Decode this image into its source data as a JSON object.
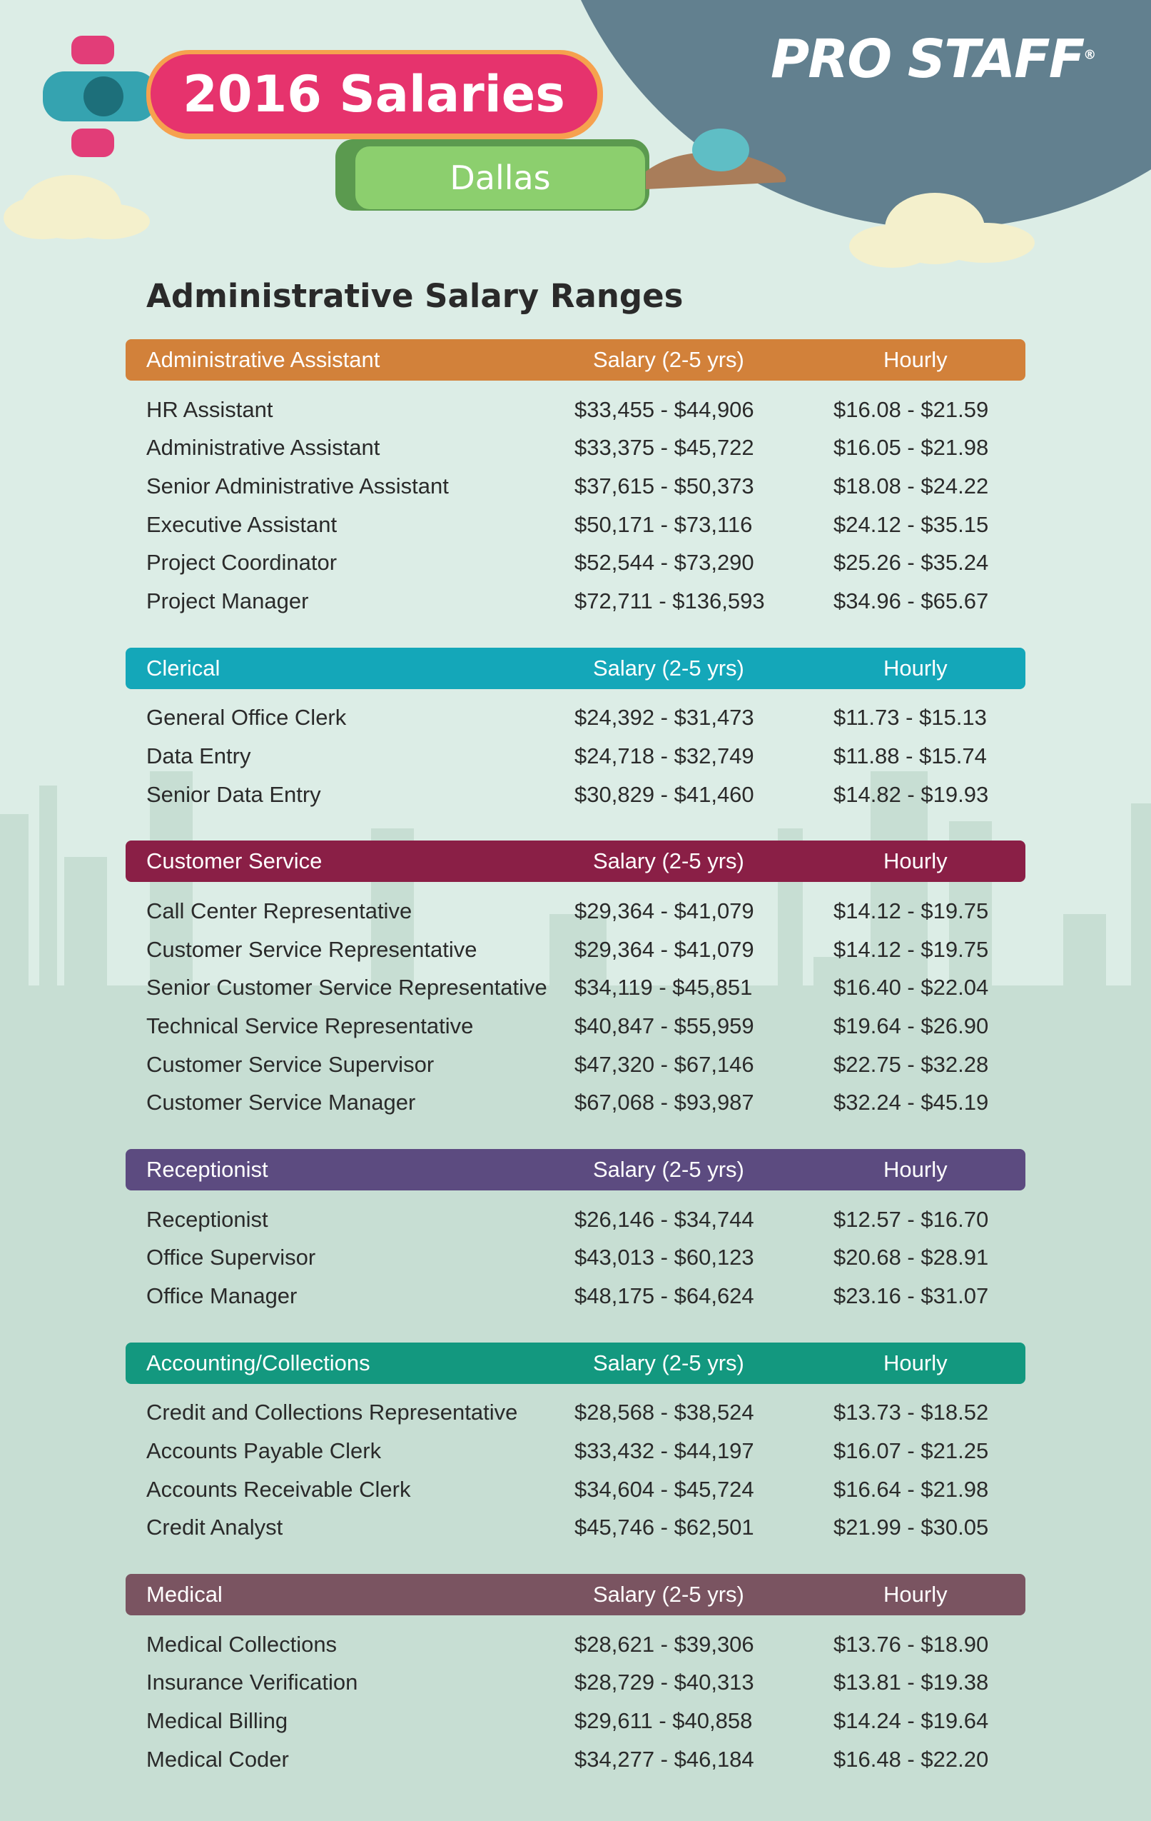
{
  "header": {
    "title": "2016 Salaries",
    "subtitle": "Dallas",
    "logo": "PRO STAFF",
    "logo_mark": "®"
  },
  "heading": "Administrative Salary Ranges",
  "sections": [
    {
      "color": "#d2813a",
      "columns": [
        "Administrative Assistant",
        "Salary (2-5 yrs)",
        "Hourly"
      ],
      "rows": [
        [
          "HR Assistant",
          "$33,455 - $44,906",
          "$16.08 - $21.59"
        ],
        [
          "Administrative Assistant",
          "$33,375 - $45,722",
          "$16.05 - $21.98"
        ],
        [
          "Senior Administrative Assistant",
          "$37,615 - $50,373",
          "$18.08 - $24.22"
        ],
        [
          "Executive Assistant",
          "$50,171 - $73,116",
          "$24.12 - $35.15"
        ],
        [
          "Project Coordinator",
          "$52,544 - $73,290",
          "$25.26 - $35.24"
        ],
        [
          "Project Manager",
          "$72,711 - $136,593",
          "$34.96 - $65.67"
        ]
      ]
    },
    {
      "color": "#14a7b9",
      "columns": [
        "Clerical",
        "Salary (2-5 yrs)",
        "Hourly"
      ],
      "rows": [
        [
          "General Office Clerk",
          "$24,392 - $31,473",
          "$11.73 - $15.13"
        ],
        [
          "Data Entry",
          "$24,718 - $32,749",
          "$11.88 - $15.74"
        ],
        [
          "Senior Data Entry",
          "$30,829 - $41,460",
          "$14.82 - $19.93"
        ]
      ]
    },
    {
      "color": "#8a1f46",
      "columns": [
        "Customer Service",
        "Salary (2-5 yrs)",
        "Hourly"
      ],
      "rows": [
        [
          "Call Center Representative",
          "$29,364 - $41,079",
          "$14.12 - $19.75"
        ],
        [
          "Customer Service Representative",
          "$29,364 - $41,079",
          "$14.12 - $19.75"
        ],
        [
          "Senior Customer Service Representative",
          "$34,119 - $45,851",
          "$16.40 - $22.04"
        ],
        [
          "Technical Service Representative",
          "$40,847 - $55,959",
          "$19.64 - $26.90"
        ],
        [
          "Customer Service Supervisor",
          "$47,320 - $67,146",
          "$22.75 - $32.28"
        ],
        [
          "Customer Service Manager",
          "$67,068 - $93,987",
          "$32.24 - $45.19"
        ]
      ]
    },
    {
      "color": "#5c4b80",
      "columns": [
        "Receptionist",
        "Salary (2-5 yrs)",
        "Hourly"
      ],
      "rows": [
        [
          "Receptionist",
          "$26,146 - $34,744",
          "$12.57 - $16.70"
        ],
        [
          "Office Supervisor",
          "$43,013 - $60,123",
          "$20.68 - $28.91"
        ],
        [
          "Office Manager",
          "$48,175 - $64,624",
          "$23.16 - $31.07"
        ]
      ]
    },
    {
      "color": "#13987f",
      "columns": [
        "Accounting/Collections",
        "Salary (2-5 yrs)",
        "Hourly"
      ],
      "rows": [
        [
          "Credit and Collections Representative",
          "$28,568 - $38,524",
          "$13.73 - $18.52"
        ],
        [
          "Accounts Payable Clerk",
          "$33,432 - $44,197",
          "$16.07 - $21.25"
        ],
        [
          "Accounts Receivable Clerk",
          "$34,604 - $45,724",
          "$16.64 - $21.98"
        ],
        [
          "Credit Analyst",
          "$45,746 - $62,501",
          "$21.99 - $30.05"
        ]
      ]
    },
    {
      "color": "#7a5461",
      "columns": [
        "Medical",
        "Salary (2-5 yrs)",
        "Hourly"
      ],
      "rows": [
        [
          "Medical Collections",
          "$28,621 - $39,306",
          "$13.76 - $18.90"
        ],
        [
          "Insurance Verification",
          "$28,729 - $40,313",
          "$13.81 - $19.38"
        ],
        [
          "Medical Billing",
          "$29,611 - $40,858",
          "$14.24 - $19.64"
        ],
        [
          "Medical Coder",
          "$34,277 - $46,184",
          "$16.48 - $22.20"
        ]
      ]
    }
  ]
}
